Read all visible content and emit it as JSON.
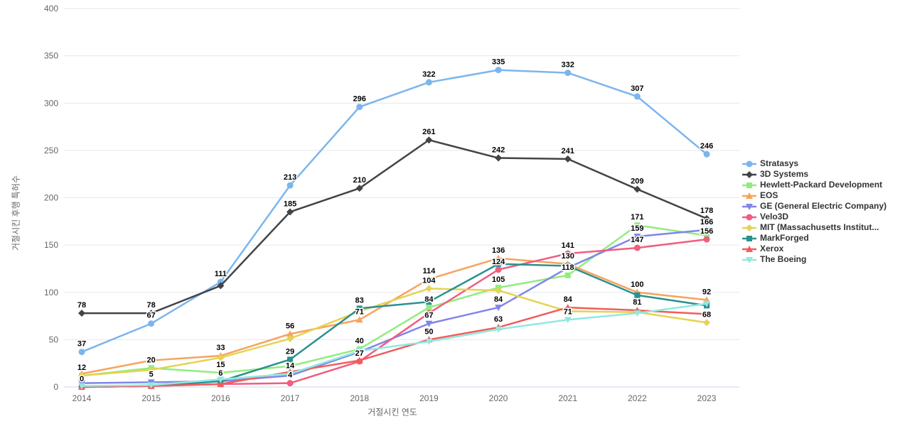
{
  "chart_data": {
    "type": "line",
    "title": "",
    "xlabel": "거절시킨 연도",
    "ylabel": "거절시킨 후행 특허수",
    "categories": [
      "2014",
      "2015",
      "2016",
      "2017",
      "2018",
      "2019",
      "2020",
      "2021",
      "2022",
      "2023"
    ],
    "ylim": [
      0,
      400
    ],
    "yticks": [
      0,
      50,
      100,
      150,
      200,
      250,
      300,
      350,
      400
    ],
    "grid": true,
    "legend_position": "right",
    "series": [
      {
        "name": "Stratasys",
        "color": "#7cb5ec",
        "marker": "circle",
        "values": [
          37,
          67,
          111,
          213,
          296,
          322,
          335,
          332,
          307,
          246
        ],
        "show_labels": [
          1,
          1,
          1,
          1,
          1,
          1,
          1,
          1,
          1,
          1
        ]
      },
      {
        "name": "3D Systems",
        "color": "#434348",
        "marker": "diamond",
        "values": [
          78,
          78,
          107,
          185,
          210,
          261,
          242,
          241,
          209,
          178
        ],
        "show_labels": [
          1,
          1,
          0,
          1,
          1,
          1,
          1,
          1,
          1,
          1
        ]
      },
      {
        "name": "Hewlett-Packard Development",
        "color": "#90ed7d",
        "marker": "square",
        "values": [
          12,
          20,
          15,
          22,
          40,
          84,
          105,
          118,
          171,
          160
        ],
        "show_labels": [
          0,
          1,
          1,
          0,
          1,
          1,
          1,
          1,
          1,
          0
        ]
      },
      {
        "name": "EOS",
        "color": "#f7a35c",
        "marker": "triangle",
        "values": [
          14,
          28,
          33,
          56,
          71,
          114,
          136,
          130,
          100,
          92
        ],
        "show_labels": [
          0,
          0,
          1,
          1,
          1,
          1,
          1,
          1,
          1,
          1
        ]
      },
      {
        "name": "GE (General Electric Company)",
        "color": "#8085e9",
        "marker": "triangle-down",
        "values": [
          4,
          5,
          6,
          12,
          37,
          67,
          84,
          126,
          159,
          166
        ],
        "show_labels": [
          0,
          1,
          0,
          0,
          0,
          1,
          1,
          0,
          1,
          1
        ]
      },
      {
        "name": "Velo3D",
        "color": "#f15c80",
        "marker": "circle",
        "values": [
          0,
          1,
          3,
          4,
          27,
          78,
          124,
          141,
          147,
          156
        ],
        "show_labels": [
          0,
          0,
          0,
          1,
          1,
          0,
          1,
          1,
          1,
          1
        ]
      },
      {
        "name": "MIT (Massachusetts Institut...",
        "color": "#e4d354",
        "marker": "diamond",
        "values": [
          12,
          18,
          31,
          51,
          80,
          104,
          102,
          80,
          79,
          68
        ],
        "show_labels": [
          1,
          0,
          0,
          0,
          0,
          1,
          0,
          0,
          0,
          1
        ]
      },
      {
        "name": "MarkForged",
        "color": "#2b908f",
        "marker": "square",
        "values": [
          0,
          1,
          6,
          29,
          83,
          90,
          130,
          128,
          97,
          86
        ],
        "show_labels": [
          0,
          0,
          1,
          1,
          1,
          0,
          0,
          0,
          0,
          0
        ]
      },
      {
        "name": "Xerox",
        "color": "#f45b5b",
        "marker": "triangle",
        "values": [
          0,
          1,
          3,
          16,
          28,
          50,
          63,
          84,
          81,
          77
        ],
        "show_labels": [
          1,
          0,
          0,
          0,
          0,
          1,
          1,
          1,
          1,
          0
        ]
      },
      {
        "name": "The Boeing",
        "color": "#91e8e1",
        "marker": "triangle-down",
        "values": [
          1,
          2,
          8,
          14,
          38,
          48,
          61,
          71,
          78,
          88
        ],
        "show_labels": [
          0,
          0,
          0,
          1,
          0,
          0,
          0,
          1,
          0,
          0
        ]
      }
    ],
    "colors": {
      "grid_line": "#e6e6e6",
      "axis_line": "#ccd6eb",
      "tick_label": "#666666",
      "data_label": "#000000",
      "legend_text": "#333333"
    }
  }
}
